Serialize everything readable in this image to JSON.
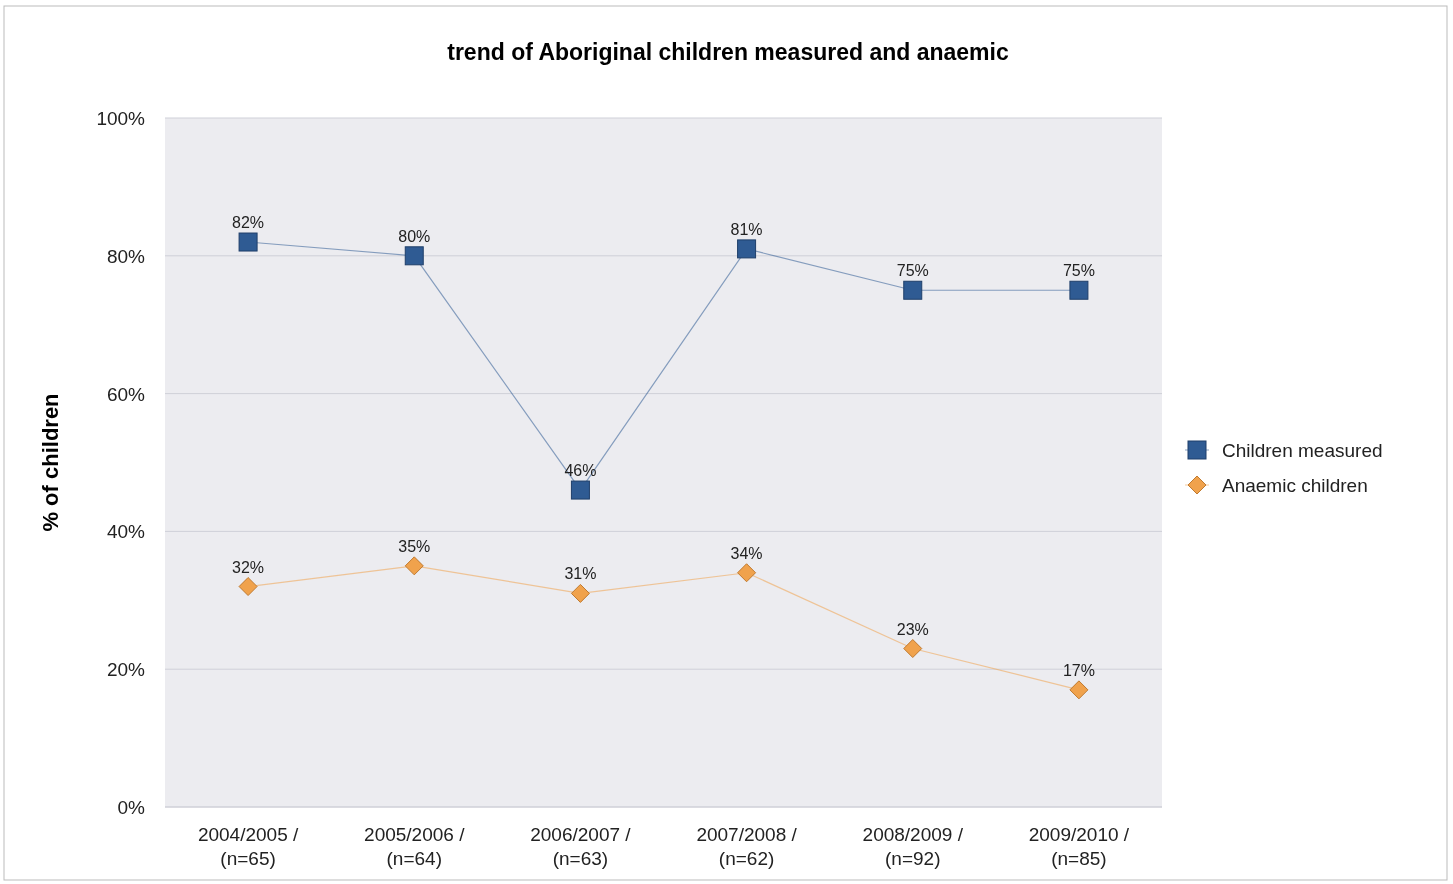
{
  "chart_data": {
    "type": "line",
    "title": "trend of Aboriginal children measured and anaemic",
    "ylabel": "% of children",
    "categories": [
      "2004/2005 /\n(n=65)",
      "2005/2006 /\n(n=64)",
      "2006/2007 /\n(n=63)",
      "2007/2008 /\n(n=62)",
      "2008/2009 /\n(n=92)",
      "2009/2010 /\n(n=85)"
    ],
    "series": [
      {
        "name": "Children measured",
        "color": "#2f5b93",
        "marker": "square",
        "values": [
          82,
          80,
          46,
          81,
          75,
          75
        ],
        "value_labels": [
          "82%",
          "80%",
          "46%",
          "81%",
          "75%",
          "75%"
        ]
      },
      {
        "name": "Anaemic children",
        "color": "#f0a24c",
        "marker": "diamond",
        "values": [
          32,
          35,
          31,
          34,
          23,
          17
        ],
        "value_labels": [
          "32%",
          "35%",
          "31%",
          "34%",
          "23%",
          "17%"
        ]
      }
    ],
    "ylim": [
      0,
      100
    ],
    "yticks": [
      {
        "value": 0,
        "label": "0%"
      },
      {
        "value": 20,
        "label": "20%"
      },
      {
        "value": 40,
        "label": "40%"
      },
      {
        "value": 60,
        "label": "60%"
      },
      {
        "value": 80,
        "label": "80%"
      },
      {
        "value": 100,
        "label": "100%"
      }
    ],
    "grid": "y",
    "legend": "right",
    "line_style": "solid"
  }
}
